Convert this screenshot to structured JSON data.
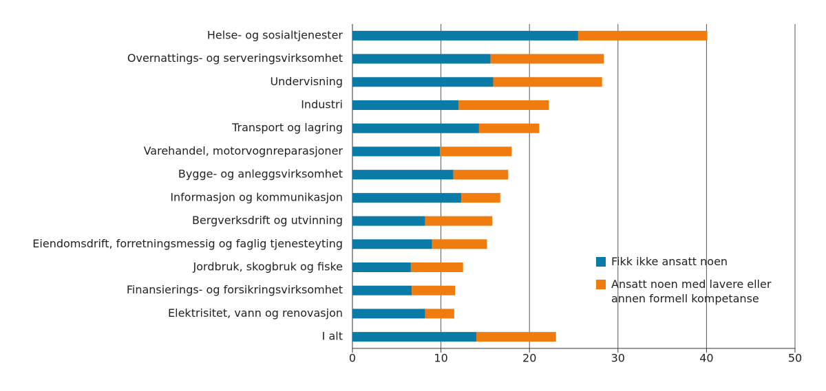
{
  "chart_data": {
    "type": "stacked-bar-horizontal",
    "categories": [
      "Helse- og sosialtjenester",
      "Overnattings- og serveringsvirksomhet",
      "Undervisning",
      "Industri",
      "Transport og lagring",
      "Varehandel, motorvognreparasjoner",
      "Bygge- og anleggsvirksomhet",
      "Informasjon og kommunikasjon",
      "Bergverksdrift og utvinning",
      "Eiendomsdrift, forretningsmessig og faglig tjenesteyting",
      "Jordbruk, skogbruk og fiske",
      "Finansierings- og forsikringsvirksomhet",
      "Elektrisitet, vann og renovasjon",
      "I alt"
    ],
    "series": [
      {
        "name": "Fikk ikke ansatt noen",
        "color": "#0a7aa6",
        "values": [
          25.5,
          15.6,
          15.9,
          12.0,
          14.3,
          9.9,
          11.4,
          12.3,
          8.2,
          9.0,
          6.6,
          6.7,
          8.2,
          14.0
        ]
      },
      {
        "name": "Ansatt noen med lavere eller annen formell kompetanse",
        "color": "#f07c0f",
        "values": [
          14.6,
          12.8,
          12.3,
          10.2,
          6.8,
          8.1,
          6.2,
          4.4,
          7.6,
          6.2,
          5.9,
          4.9,
          3.3,
          9.0
        ]
      }
    ],
    "xlim": [
      0,
      50
    ],
    "xticks": [
      0,
      10,
      20,
      30,
      40,
      50
    ],
    "grid": true
  }
}
